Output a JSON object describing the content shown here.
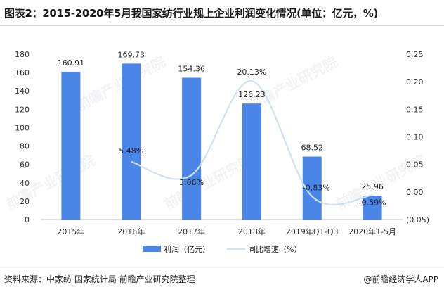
{
  "title": "图表2：2015-2020年5月我国家纺行业规上企业利润变化情况(单位：亿元，%)",
  "source": "资料来源：中家纺 国家统计局 前瞻产业研究院整理",
  "brand": "@前瞻经济学人APP",
  "watermark": "前瞻产业研究院",
  "chart_data": {
    "type": "bar",
    "categories": [
      "2015年",
      "2016年",
      "2017年",
      "2018年",
      "2019年Q1-Q3",
      "2020年1-5月"
    ],
    "series": [
      {
        "name": "利润（亿元）",
        "type": "bar",
        "axis": "left",
        "color": "#4a86e8",
        "values": [
          160.91,
          169.73,
          154.36,
          126.23,
          68.52,
          25.96
        ],
        "labels": [
          "160.91",
          "169.73",
          "154.36",
          "126.23",
          "68.52",
          "25.96"
        ]
      },
      {
        "name": "同比增速（%）",
        "type": "line",
        "axis": "right",
        "color": "#cfe2f3",
        "values": [
          null,
          0.0548,
          0.0306,
          0.2013,
          -0.0083,
          -0.0059
        ],
        "labels": [
          "",
          "5.48%",
          "3.06%",
          "20.13%",
          "-0.83%",
          "-0.59%"
        ]
      }
    ],
    "y_left": {
      "ticks": [
        "0",
        "20",
        "40",
        "60",
        "80",
        "100",
        "120",
        "140",
        "160",
        "180"
      ],
      "ylim": [
        0,
        180
      ]
    },
    "y_right": {
      "ticks": [
        "(0.05)",
        "0.00",
        "0.05",
        "0.10",
        "0.15",
        "0.20",
        "0.25"
      ],
      "ylim": [
        -0.05,
        0.25
      ]
    },
    "grid": false,
    "legend_position": "bottom"
  }
}
